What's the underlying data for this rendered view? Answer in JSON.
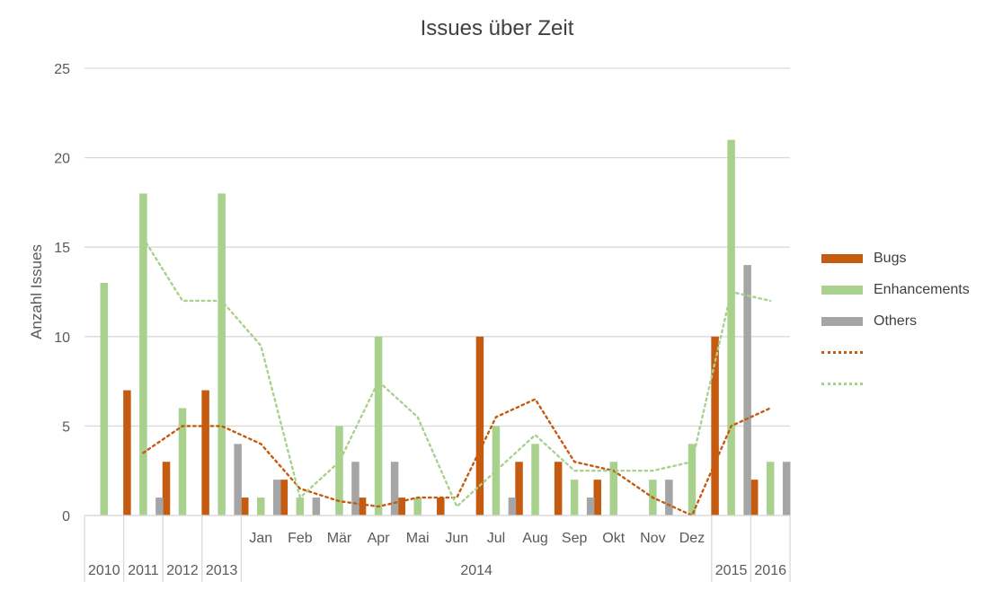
{
  "chart_data": {
    "type": "bar",
    "title": "Issues über Zeit",
    "ylabel": "Anzahl Issues",
    "xlabel": "",
    "ylim": [
      0,
      25
    ],
    "yticks": [
      0,
      5,
      10,
      15,
      20,
      25
    ],
    "grid": true,
    "legend_position": "right",
    "categories": [
      "2010",
      "2011",
      "2012",
      "2013",
      "Jan",
      "Feb",
      "Mär",
      "Apr",
      "Mai",
      "Jun",
      "Jul",
      "Aug",
      "Sep",
      "Okt",
      "Nov",
      "Dez",
      "2015",
      "2016"
    ],
    "groups": [
      {
        "label": "2010",
        "count": 1
      },
      {
        "label": "2011",
        "count": 1
      },
      {
        "label": "2012",
        "count": 1
      },
      {
        "label": "2013",
        "count": 1
      },
      {
        "label": "2014",
        "count": 12
      },
      {
        "label": "2015",
        "count": 1
      },
      {
        "label": "2016",
        "count": 1
      }
    ],
    "series": [
      {
        "name": "Bugs",
        "color": "#C55A11",
        "values": [
          0,
          7,
          3,
          7,
          1,
          2,
          0,
          1,
          1,
          1,
          10,
          3,
          3,
          2,
          0,
          0,
          10,
          2
        ]
      },
      {
        "name": "Enhancements",
        "color": "#A9D18E",
        "values": [
          13,
          18,
          6,
          18,
          1,
          1,
          5,
          10,
          1,
          0,
          5,
          4,
          2,
          3,
          2,
          4,
          21,
          3
        ]
      },
      {
        "name": "Others",
        "color": "#A5A5A5",
        "values": [
          0,
          1,
          0,
          4,
          2,
          1,
          3,
          3,
          0,
          0,
          1,
          0,
          1,
          0,
          2,
          0,
          14,
          3
        ]
      }
    ],
    "trendlines": [
      {
        "color": "#C55A11",
        "name": "",
        "values": [
          null,
          3.5,
          5,
          5,
          4,
          1.5,
          0.8,
          0.5,
          1,
          1,
          5.5,
          6.5,
          3,
          2.5,
          1,
          0,
          5,
          6
        ]
      },
      {
        "color": "#A9D18E",
        "name": "",
        "values": [
          null,
          15.5,
          12,
          12,
          9.5,
          1,
          3,
          7.5,
          5.5,
          0.5,
          2.5,
          4.5,
          2.5,
          2.5,
          2.5,
          3,
          12.5,
          12
        ]
      }
    ]
  }
}
